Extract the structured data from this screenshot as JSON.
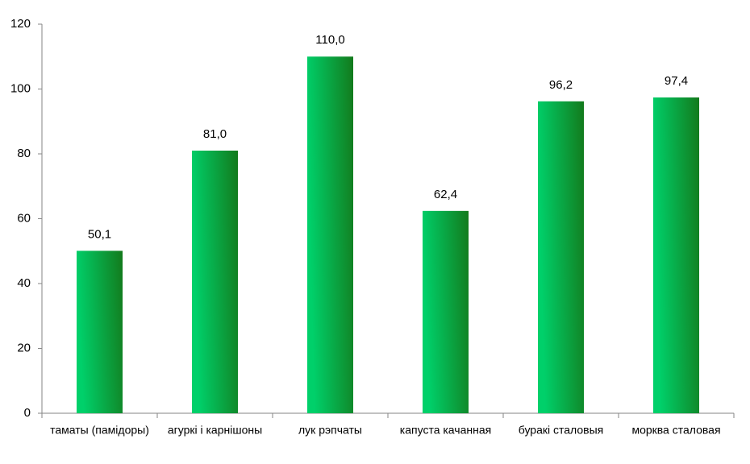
{
  "chart_data": {
    "type": "bar",
    "categories": [
      "таматы (памідоры)",
      "агуркі  і карнішоны",
      "лук рэпчаты",
      "капуста качанная",
      "буракі  сталовыя",
      "морква  сталовая"
    ],
    "values": [
      50.1,
      81.0,
      110.0,
      62.4,
      96.2,
      97.4
    ],
    "value_labels": [
      "50,1",
      "81,0",
      "110,0",
      "62,4",
      "96,2",
      "97,4"
    ],
    "color": "#00cc66",
    "ylim": [
      0,
      120
    ],
    "yticks": [
      0,
      20,
      40,
      60,
      80,
      100,
      120
    ],
    "grid": false
  }
}
